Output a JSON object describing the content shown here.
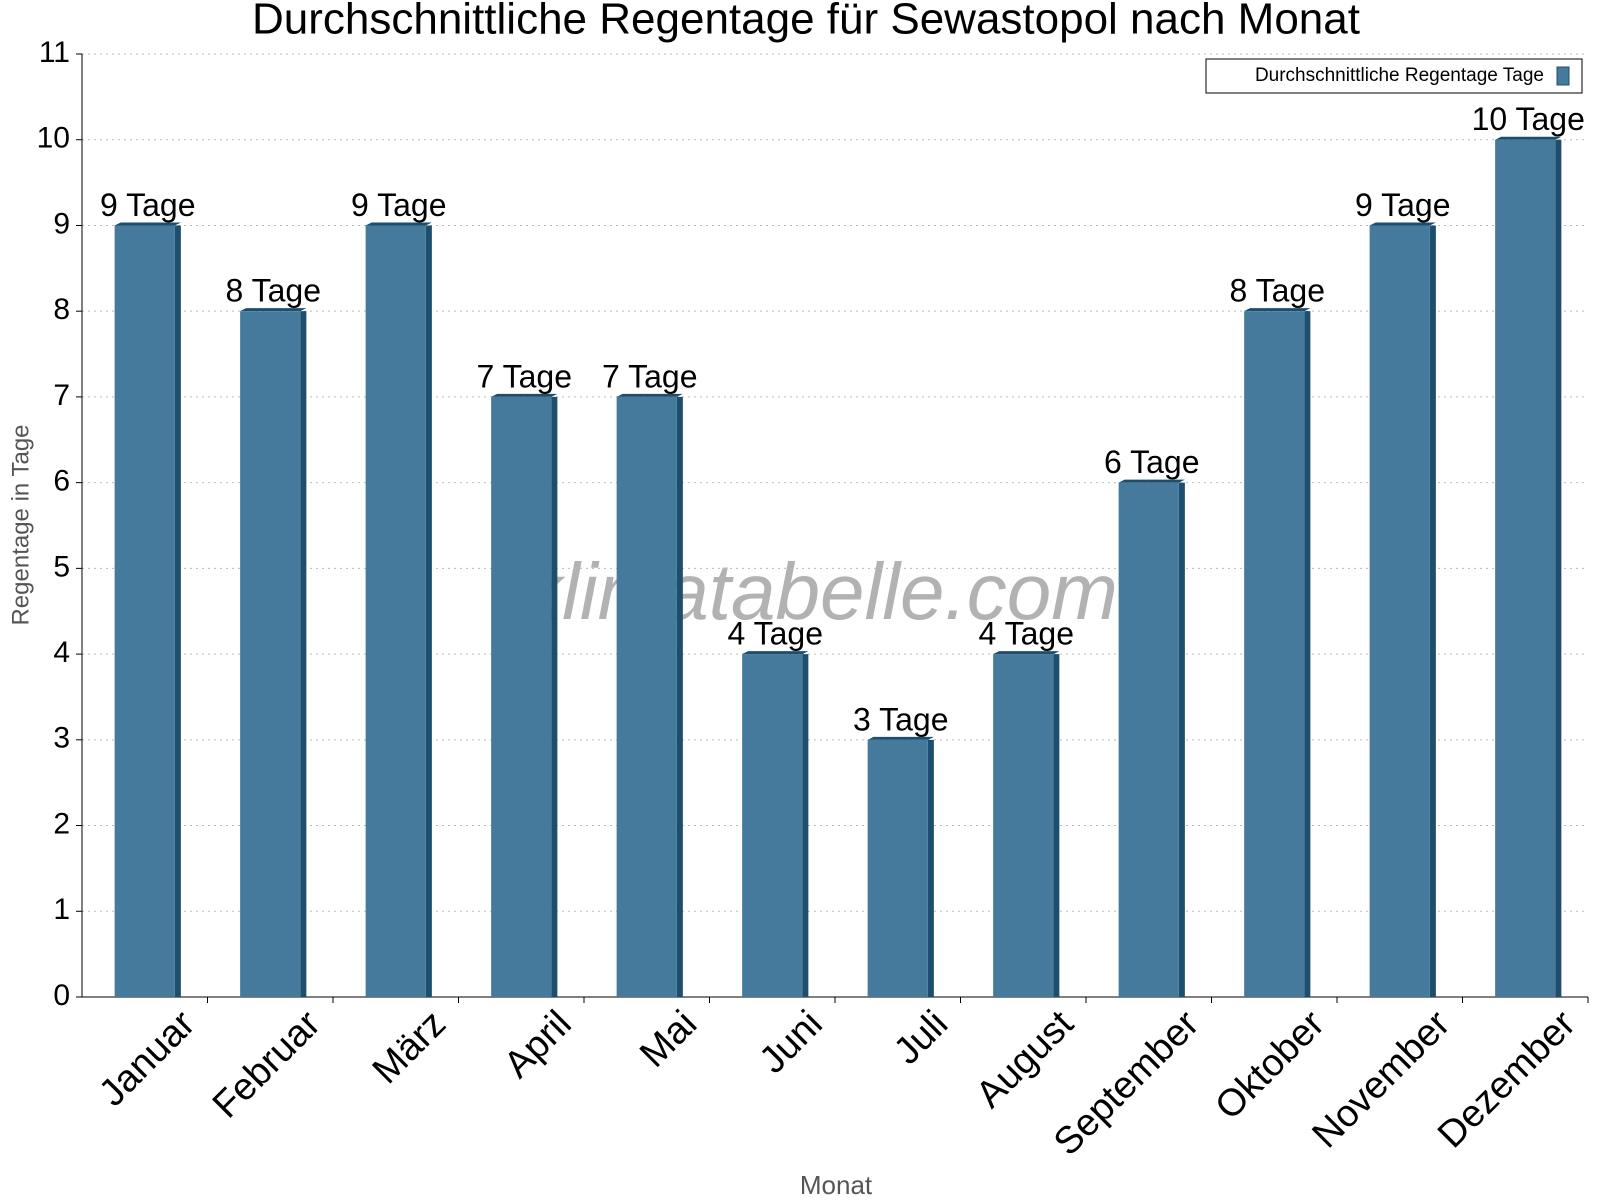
{
  "chart_data": {
    "type": "bar",
    "title": "Durchschnittliche Regentage für Sewastopol nach Monat",
    "watermark": "klimatabelle.com",
    "x_label": "Monat",
    "y_label": "Regentage in Tage",
    "categories": [
      "Januar",
      "Februar",
      "März",
      "April",
      "Mai",
      "Juni",
      "Juli",
      "August",
      "September",
      "Oktober",
      "November",
      "Dezember"
    ],
    "series": [
      {
        "name": "Durchschnittliche Regentage Tage",
        "color": "#467a9c",
        "values": [
          9,
          8,
          9,
          7,
          7,
          4,
          3,
          4,
          6,
          8,
          9,
          10
        ],
        "value_labels": [
          "9 Tage",
          "8 Tage",
          "9 Tage",
          "7 Tage",
          "7 Tage",
          "4 Tage",
          "3 Tage",
          "4 Tage",
          "6 Tage",
          "8 Tage",
          "9 Tage",
          "10 Tage"
        ]
      }
    ],
    "ylim": [
      0,
      11
    ],
    "yticks": [
      0,
      1,
      2,
      3,
      4,
      5,
      6,
      7,
      8,
      9,
      10,
      11
    ],
    "grid": true,
    "legend": "top-right"
  }
}
